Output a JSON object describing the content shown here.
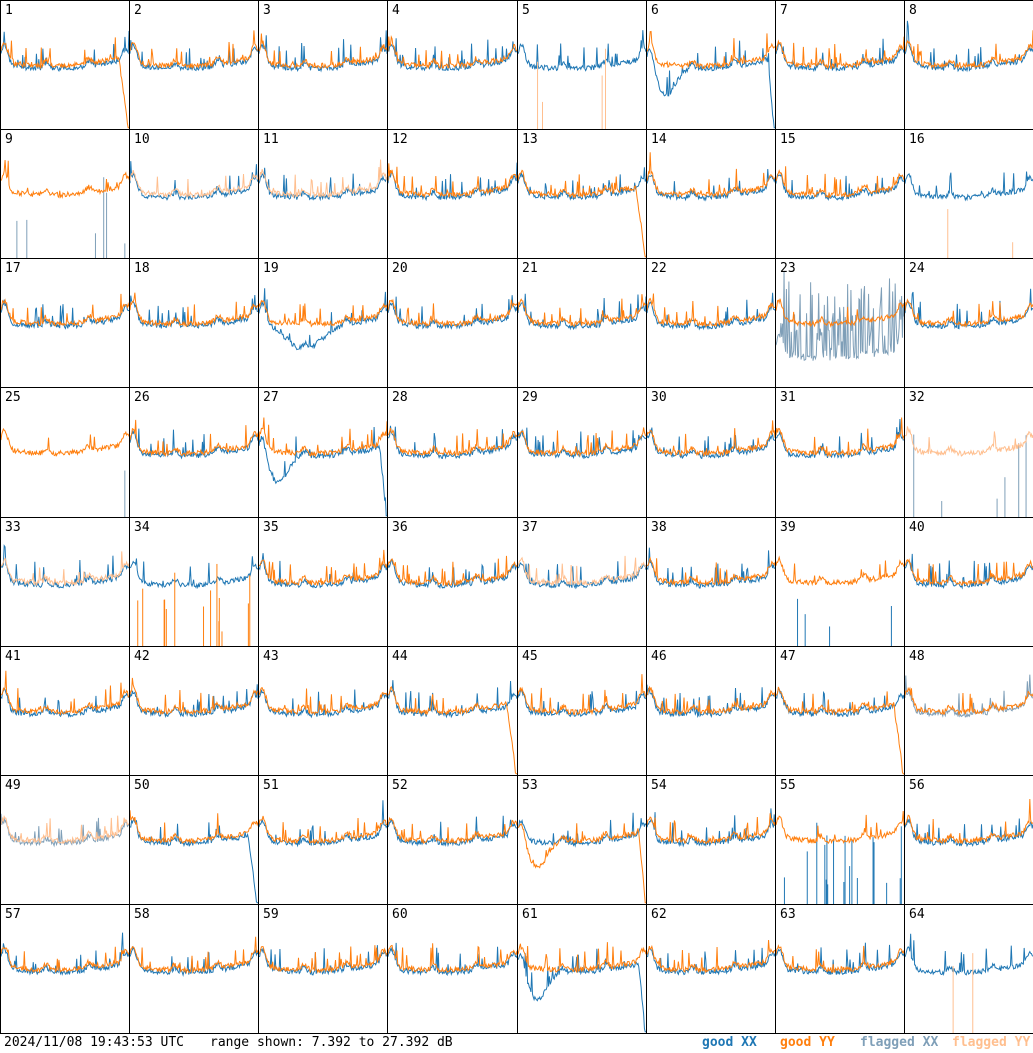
{
  "chart_data": {
    "type": "line",
    "panel_count": 64,
    "panel_labels": [
      "1",
      "2",
      "3",
      "4",
      "5",
      "6",
      "7",
      "8",
      "9",
      "10",
      "11",
      "12",
      "13",
      "14",
      "15",
      "16",
      "17",
      "18",
      "19",
      "20",
      "21",
      "22",
      "23",
      "24",
      "25",
      "26",
      "27",
      "28",
      "29",
      "30",
      "31",
      "32",
      "33",
      "34",
      "35",
      "36",
      "37",
      "38",
      "39",
      "40",
      "41",
      "42",
      "43",
      "44",
      "45",
      "46",
      "47",
      "48",
      "49",
      "50",
      "51",
      "52",
      "53",
      "54",
      "55",
      "56",
      "57",
      "58",
      "59",
      "60",
      "61",
      "62",
      "63",
      "64"
    ],
    "ylim": [
      7.392,
      27.392
    ],
    "yunit": "dB",
    "series": [
      {
        "name": "good XX",
        "color": "#1f77b4"
      },
      {
        "name": "good YY",
        "color": "#ff7f0e"
      },
      {
        "name": "flagged XX",
        "color": "#7f9fb8"
      },
      {
        "name": "flagged YY",
        "color": "#ffbf8f"
      }
    ],
    "panels": {
      "1": {
        "xx": "good",
        "yy": "good",
        "yy_shape": "dropend",
        "xx_noisy": true
      },
      "2": {
        "xx": "good",
        "yy": "good"
      },
      "3": {
        "xx": "good",
        "yy": "good"
      },
      "4": {
        "xx": "good",
        "yy": "good"
      },
      "5": {
        "xx": "good",
        "yy": "spikes"
      },
      "6": {
        "xx": "good",
        "yy": "good",
        "xx_shape": "dipdrop"
      },
      "7": {
        "xx": "good",
        "yy": "good"
      },
      "8": {
        "xx": "good",
        "yy": "good"
      },
      "9": {
        "xx": "flagspikes",
        "yy": "good"
      },
      "10": {
        "xx": "good",
        "yy": "flagged"
      },
      "11": {
        "xx": "good",
        "yy": "flagged"
      },
      "12": {
        "xx": "good",
        "yy": "good"
      },
      "13": {
        "xx": "good",
        "yy": "good",
        "yy_shape": "dropend"
      },
      "14": {
        "xx": "good",
        "yy": "good"
      },
      "15": {
        "xx": "good",
        "yy": "good"
      },
      "16": {
        "xx": "good",
        "yy": "flagspikes"
      },
      "17": {
        "xx": "good",
        "yy": "good"
      },
      "18": {
        "xx": "good",
        "yy": "good"
      },
      "19": {
        "xx": "good",
        "yy": "good",
        "xx_shape": "dip"
      },
      "20": {
        "xx": "good",
        "yy": "good"
      },
      "21": {
        "xx": "good",
        "yy": "good"
      },
      "22": {
        "xx": "good",
        "yy": "good"
      },
      "23": {
        "xx": "flagged_noisy",
        "yy": "good"
      },
      "24": {
        "xx": "good",
        "yy": "good"
      },
      "25": {
        "xx": "spike",
        "yy": "good"
      },
      "26": {
        "xx": "good",
        "yy": "good"
      },
      "27": {
        "xx": "good",
        "yy": "good",
        "xx_shape": "dipdrop"
      },
      "28": {
        "xx": "good",
        "yy": "good"
      },
      "29": {
        "xx": "good",
        "yy": "good"
      },
      "30": {
        "xx": "good",
        "yy": "good"
      },
      "31": {
        "xx": "good",
        "yy": "good"
      },
      "32": {
        "xx": "flagspikes",
        "yy": "flagged"
      },
      "33": {
        "xx": "good",
        "yy": "flagged"
      },
      "34": {
        "xx": "good",
        "yy": "spikesdense"
      },
      "35": {
        "xx": "good",
        "yy": "good"
      },
      "36": {
        "xx": "good",
        "yy": "good"
      },
      "37": {
        "xx": "good",
        "yy": "flagged"
      },
      "38": {
        "xx": "good",
        "yy": "good"
      },
      "39": {
        "xx": "spikes",
        "yy": "good"
      },
      "40": {
        "xx": "good",
        "yy": "good"
      },
      "41": {
        "xx": "good",
        "yy": "good"
      },
      "42": {
        "xx": "good",
        "yy": "good"
      },
      "43": {
        "xx": "good",
        "yy": "good"
      },
      "44": {
        "xx": "good",
        "yy": "good",
        "yy_shape": "dropend"
      },
      "45": {
        "xx": "good",
        "yy": "good"
      },
      "46": {
        "xx": "good",
        "yy": "good"
      },
      "47": {
        "xx": "good",
        "yy": "good",
        "yy_shape": "dropend"
      },
      "48": {
        "xx": "flagged",
        "yy": "good"
      },
      "49": {
        "xx": "flagged",
        "yy": "flagged"
      },
      "50": {
        "xx": "good",
        "yy": "good",
        "xx_shape": "dropend"
      },
      "51": {
        "xx": "good",
        "yy": "good"
      },
      "52": {
        "xx": "good",
        "yy": "good"
      },
      "53": {
        "xx": "good",
        "yy": "good",
        "yy_shape": "dipdrop"
      },
      "54": {
        "xx": "good",
        "yy": "good"
      },
      "55": {
        "xx": "spikesdense",
        "yy": "good"
      },
      "56": {
        "xx": "good",
        "yy": "good"
      },
      "57": {
        "xx": "good",
        "yy": "good"
      },
      "58": {
        "xx": "good",
        "yy": "good"
      },
      "59": {
        "xx": "good",
        "yy": "good"
      },
      "60": {
        "xx": "good",
        "yy": "good"
      },
      "61": {
        "xx": "good",
        "yy": "good",
        "xx_shape": "dipdrop"
      },
      "62": {
        "xx": "good",
        "yy": "good"
      },
      "63": {
        "xx": "good",
        "yy": "good"
      },
      "64": {
        "xx": "good",
        "yy": "flagspikes"
      }
    }
  },
  "footer": {
    "timestamp": "2024/11/08 19:43:53 UTC",
    "range": "range shown: 7.392 to 27.392 dB",
    "legend": {
      "good_xx": "good XX",
      "good_yy": "good YY",
      "flagged_xx": "flagged XX",
      "flagged_yy": "flagged YY"
    }
  }
}
